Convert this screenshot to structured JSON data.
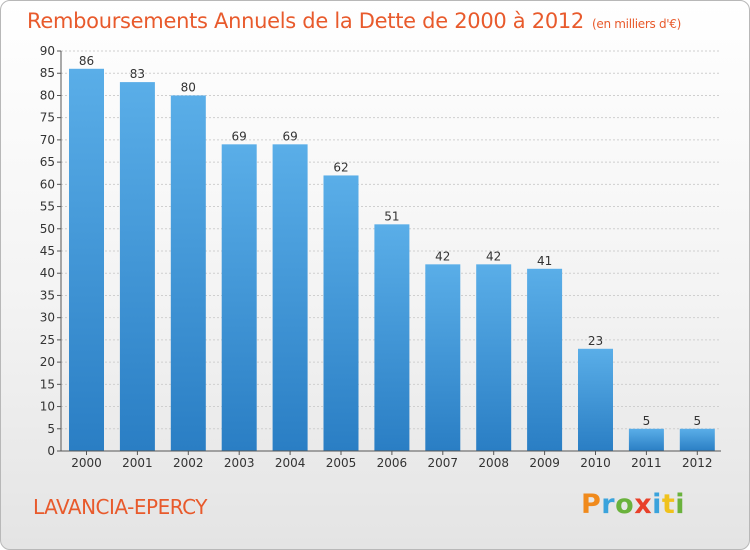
{
  "title": "Remboursements Annuels de la Dette de 2000 à 2012",
  "unit_note": "(en milliers d'€)",
  "city": "LAVANCIA-EPERCY",
  "logo": {
    "text": "Proxiti",
    "letter_colors": [
      "#f08a1c",
      "#3aa3dc",
      "#6ab23c",
      "#e8402a",
      "#3aa3dc",
      "#f0c21c",
      "#6ab23c"
    ]
  },
  "colors": {
    "title": "#e85a2c",
    "bar_top": "#5aaee8",
    "bar_bottom": "#2a7ec4",
    "grid": "#cfcfcf",
    "axis_text": "#333333"
  },
  "chart_data": {
    "type": "bar",
    "title": "Remboursements Annuels de la Dette de 2000 à 2012",
    "xlabel": "",
    "ylabel": "",
    "categories": [
      "2000",
      "2001",
      "2002",
      "2003",
      "2004",
      "2005",
      "2006",
      "2007",
      "2008",
      "2009",
      "2010",
      "2011",
      "2012"
    ],
    "values": [
      86,
      83,
      80,
      69,
      69,
      62,
      51,
      42,
      42,
      41,
      23,
      5,
      5
    ],
    "ylim": [
      0,
      90
    ],
    "yticks": [
      0,
      5,
      10,
      15,
      20,
      25,
      30,
      35,
      40,
      45,
      50,
      55,
      60,
      65,
      70,
      75,
      80,
      85,
      90
    ],
    "grid": true,
    "data_labels": true
  }
}
